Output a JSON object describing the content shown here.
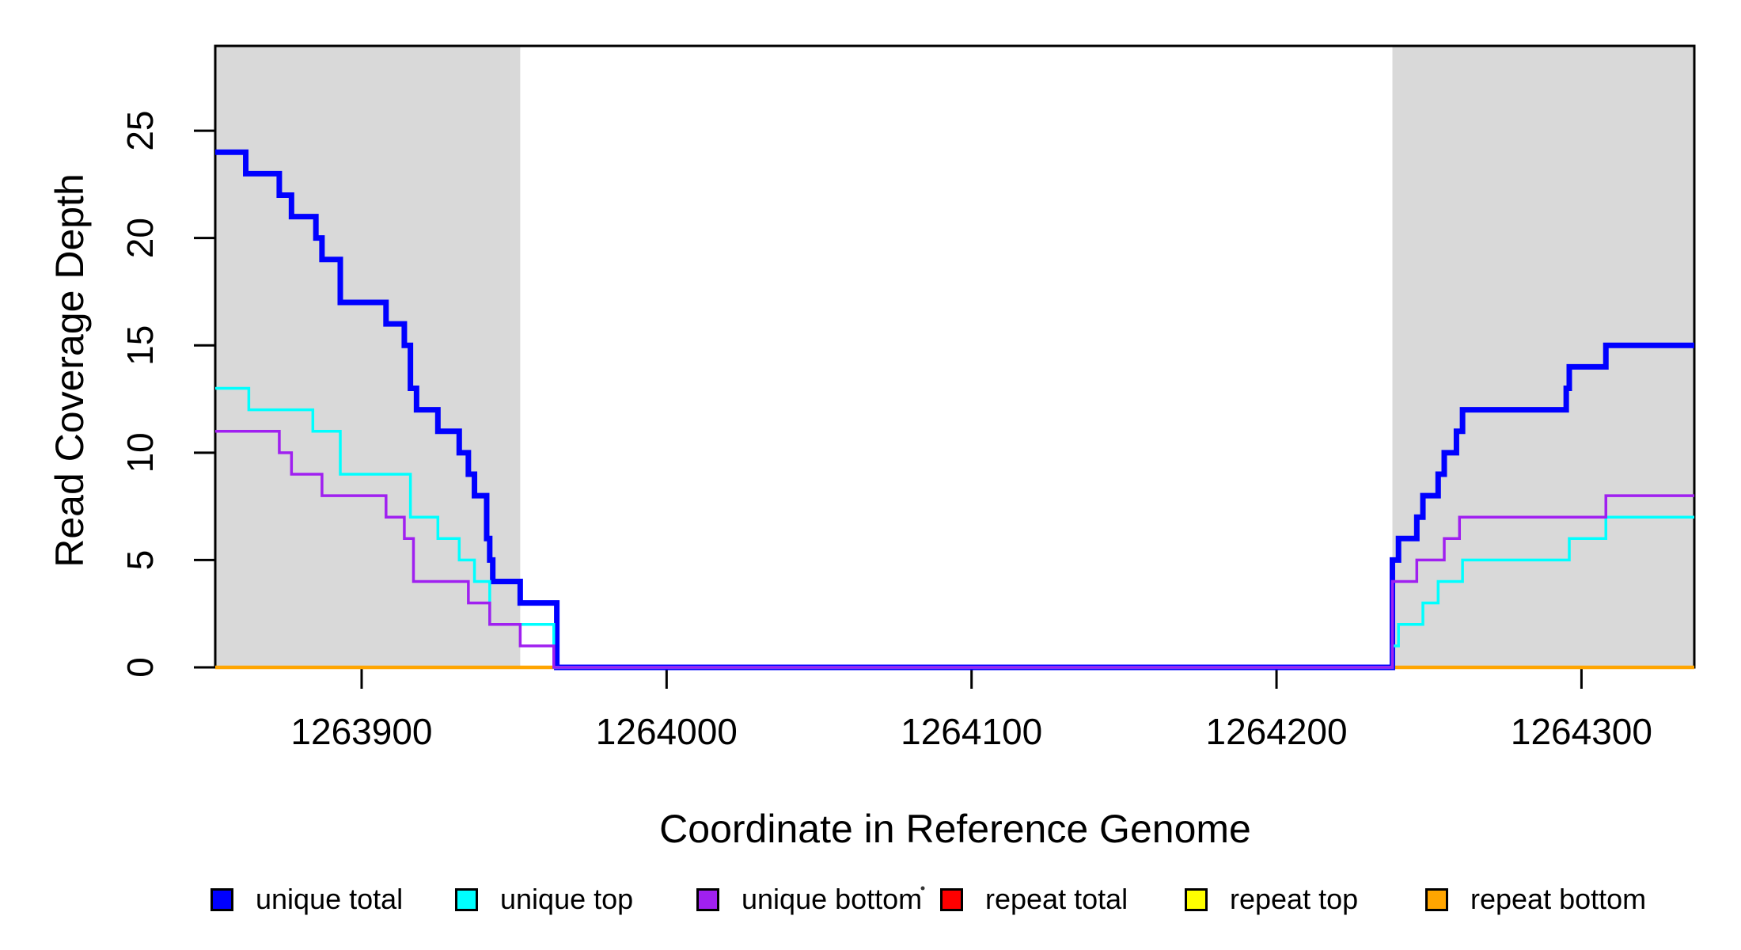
{
  "figure": {
    "xlabel": "Coordinate in Reference Genome",
    "ylabel": "Read Coverage Depth"
  },
  "chart_data": {
    "type": "line",
    "subtype": "step",
    "title": "",
    "xlabel": "Coordinate in Reference Genome",
    "ylabel": "Read Coverage Depth",
    "xlim": [
      1263852,
      1264337
    ],
    "ylim": [
      0,
      28.95
    ],
    "x_ticks": [
      1263900,
      1264000,
      1264100,
      1264200,
      1264300
    ],
    "y_ticks": [
      0,
      5,
      10,
      15,
      20,
      25
    ],
    "grid": false,
    "legend_position": "bottom",
    "plot_background": "#FFFFFF",
    "repeat_region_color": "#D9D9D9",
    "repeat_regions": [
      [
        1263852,
        1263952
      ],
      [
        1264238,
        1264337
      ]
    ],
    "series": [
      {
        "name": "repeat total",
        "color": "#FF0000",
        "width": 3,
        "steps": [
          [
            1263852,
            0
          ]
        ]
      },
      {
        "name": "repeat top",
        "color": "#FFFF00",
        "width": 3,
        "steps": [
          [
            1263852,
            0
          ]
        ]
      },
      {
        "name": "repeat bottom",
        "color": "#FFA500",
        "width": 4.5,
        "steps": [
          [
            1263852,
            0
          ]
        ]
      },
      {
        "name": "unique total",
        "color": "#0000FF",
        "width": 7,
        "steps": [
          [
            1263852,
            24
          ],
          [
            1263862,
            23
          ],
          [
            1263873,
            22
          ],
          [
            1263877,
            21
          ],
          [
            1263885,
            20
          ],
          [
            1263887,
            19
          ],
          [
            1263893,
            17
          ],
          [
            1263908,
            16
          ],
          [
            1263914,
            15
          ],
          [
            1263916,
            13
          ],
          [
            1263918,
            12
          ],
          [
            1263925,
            11
          ],
          [
            1263932,
            10
          ],
          [
            1263935,
            9
          ],
          [
            1263937,
            8
          ],
          [
            1263941,
            6
          ],
          [
            1263942,
            5
          ],
          [
            1263943,
            4
          ],
          [
            1263952,
            3
          ],
          [
            1263964,
            0
          ],
          [
            1264238,
            5
          ],
          [
            1264240,
            6
          ],
          [
            1264246,
            7
          ],
          [
            1264248,
            8
          ],
          [
            1264253,
            9
          ],
          [
            1264255,
            10
          ],
          [
            1264259,
            11
          ],
          [
            1264261,
            12
          ],
          [
            1264295,
            13
          ],
          [
            1264296,
            14
          ],
          [
            1264308,
            15
          ]
        ]
      },
      {
        "name": "unique top",
        "color": "#00FFFF",
        "width": 3.5,
        "steps": [
          [
            1263852,
            13
          ],
          [
            1263863,
            12
          ],
          [
            1263884,
            11
          ],
          [
            1263893,
            9
          ],
          [
            1263916,
            7
          ],
          [
            1263925,
            6
          ],
          [
            1263932,
            5
          ],
          [
            1263937,
            4
          ],
          [
            1263942,
            2
          ],
          [
            1263963,
            0
          ],
          [
            1264238,
            1
          ],
          [
            1264240,
            2
          ],
          [
            1264248,
            3
          ],
          [
            1264253,
            4
          ],
          [
            1264261,
            5
          ],
          [
            1264296,
            6
          ],
          [
            1264308,
            7
          ]
        ]
      },
      {
        "name": "unique bottom",
        "color": "#A020F0",
        "width": 3.5,
        "steps": [
          [
            1263852,
            11
          ],
          [
            1263873,
            10
          ],
          [
            1263877,
            9
          ],
          [
            1263887,
            8
          ],
          [
            1263908,
            7
          ],
          [
            1263914,
            6
          ],
          [
            1263917,
            4
          ],
          [
            1263935,
            3
          ],
          [
            1263942,
            2
          ],
          [
            1263952,
            1
          ],
          [
            1263963,
            0
          ],
          [
            1264238,
            4
          ],
          [
            1264246,
            5
          ],
          [
            1264255,
            6
          ],
          [
            1264260,
            7
          ],
          [
            1264308,
            8
          ]
        ]
      }
    ],
    "legend": [
      {
        "label": "unique total",
        "color": "#0000FF"
      },
      {
        "label": "unique top",
        "color": "#00FFFF"
      },
      {
        "label": "unique bottom",
        "color": "#A020F0"
      },
      {
        "label": "repeat total",
        "color": "#FF0000"
      },
      {
        "label": "repeat top",
        "color": "#FFFF00"
      },
      {
        "label": "repeat bottom",
        "color": "#FFA500"
      }
    ]
  }
}
